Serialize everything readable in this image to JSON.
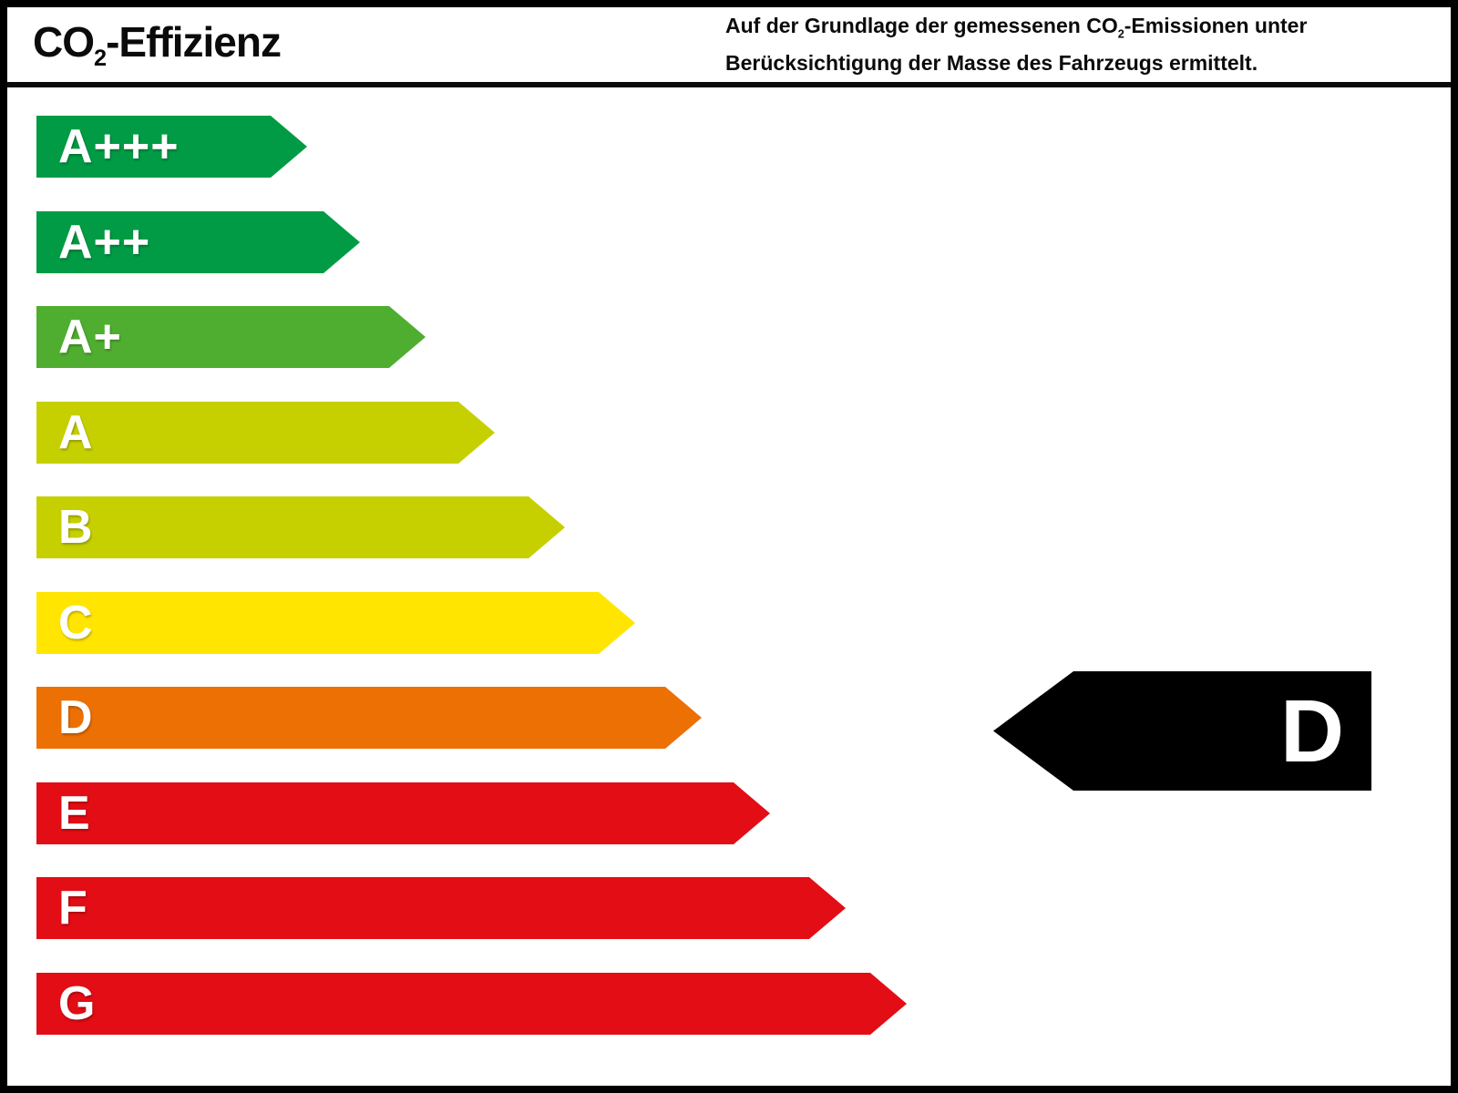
{
  "header": {
    "title": {
      "prefix": "CO",
      "sub": "2",
      "suffix": "-Effizienz"
    },
    "note": {
      "line1_prefix": "Auf der Grundlage der gemessenen CO",
      "line1_sub": "2",
      "line1_suffix": "-Emissionen unter",
      "line2": "Berücksichtigung der Masse des Fahrzeugs ermittelt."
    }
  },
  "chart_data": {
    "type": "bar",
    "title": "CO2-Effizienz",
    "orientation": "horizontal",
    "categories": [
      "A+++",
      "A++",
      "A+",
      "A",
      "B",
      "C",
      "D",
      "E",
      "F",
      "G"
    ],
    "values": [
      297,
      355,
      427,
      503,
      580,
      657,
      730,
      805,
      888,
      955
    ],
    "unit": "px-arrow-length",
    "colors": [
      "#009b44",
      "#009b44",
      "#4fae2f",
      "#c6d000",
      "#c6d000",
      "#ffe500",
      "#ed7004",
      "#e30d15",
      "#e30d15",
      "#e30d15"
    ],
    "label_color": "#ffffff",
    "rating": "D",
    "rating_arrow_color": "#000000",
    "rating_text_color": "#ffffff",
    "legend_position": "none",
    "grid": false
  }
}
